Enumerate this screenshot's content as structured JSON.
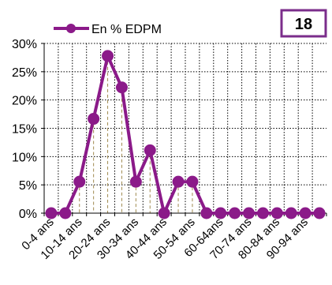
{
  "chart_data": {
    "type": "line",
    "categories": [
      "0-4 ans",
      "",
      "10-14 ans",
      "",
      "20-24 ans",
      "",
      "30-34 ans",
      "",
      "40-44 ans",
      "",
      "50-54 ans",
      "",
      "60-64ans",
      "",
      "70-74 ans",
      "",
      "80-84 ans",
      "",
      "90-94 ans",
      ""
    ],
    "series": [
      {
        "name": "En % EDPM",
        "values": [
          0,
          0,
          5.56,
          16.67,
          27.78,
          22.22,
          5.56,
          11.11,
          0,
          5.56,
          5.56,
          0,
          0,
          0,
          0,
          0,
          0,
          0,
          0,
          0
        ]
      }
    ],
    "ylim": [
      0,
      30
    ],
    "yticks": [
      "0%",
      "5%",
      "10%",
      "15%",
      "20%",
      "25%",
      "30%"
    ],
    "ytick_values": [
      0,
      5,
      10,
      15,
      20,
      25,
      30
    ],
    "grid": true,
    "legend_position": "top-left",
    "badge": "18",
    "colors": {
      "series": "#8b1a89",
      "badge_border": "#7b2d8b",
      "grid": "#000000",
      "drop_lines": "#a08a50"
    }
  }
}
